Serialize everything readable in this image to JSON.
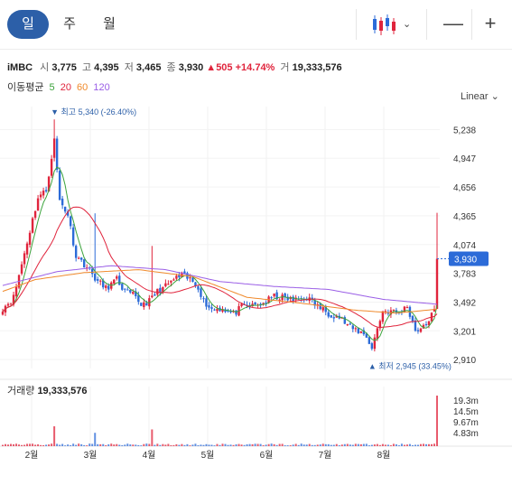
{
  "tabs": [
    {
      "label": "일",
      "active": true
    },
    {
      "label": "주",
      "active": false
    },
    {
      "label": "월",
      "active": false
    }
  ],
  "toolbar": {
    "chart_type_icon": "candlestick-icon",
    "zoom_out_icon": "minus-icon",
    "zoom_in_icon": "plus-icon",
    "zoom_out_label": "—",
    "zoom_in_label": "+"
  },
  "stock": {
    "name": "iMBC",
    "open_label": "시",
    "open": "3,775",
    "high_label": "고",
    "high": "4,395",
    "low_label": "저",
    "low": "3,465",
    "close_label": "종",
    "close": "3,930",
    "change": "505",
    "change_pct": "+14.74%",
    "volume_label": "거",
    "volume": "19,333,576"
  },
  "moving_average": {
    "label": "이동평균",
    "periods": [
      {
        "value": "5",
        "color": "#3ca33c"
      },
      {
        "value": "20",
        "color": "#e0243c"
      },
      {
        "value": "60",
        "color": "#f08a2c"
      },
      {
        "value": "120",
        "color": "#9a5ee6"
      }
    ]
  },
  "scale_label": "Linear",
  "price_tag": "3,930",
  "volume_panel": {
    "label": "거래량",
    "value": "19,333,576"
  },
  "colors": {
    "up": "#e0243c",
    "down": "#2c6bd8",
    "accent": "#2c5fa8",
    "ma5": "#3ca33c",
    "ma20": "#e0243c",
    "ma60": "#f08a2c",
    "ma120": "#9a5ee6"
  },
  "chart_data": {
    "type": "candlestick",
    "y_ticks": [
      5238,
      4947,
      4656,
      4365,
      4074,
      3783,
      3492,
      3201,
      2910
    ],
    "y_tick_labels": [
      "5,238",
      "4,947",
      "4,656",
      "4,365",
      "4,074",
      "3,783",
      "3,492",
      "3,201",
      "2,910"
    ],
    "ylim": [
      2820,
      5470
    ],
    "x_tick_labels": [
      "2월",
      "3월",
      "4월",
      "5월",
      "6월",
      "7월",
      "8월"
    ],
    "volume_ticks": [
      "19.3m",
      "14.5m",
      "9.67m",
      "4.83m"
    ],
    "volume_max": 19333576,
    "high_annotation": {
      "prefix": "최고",
      "value": 5340,
      "text": "5,340 (-26.40%)"
    },
    "low_annotation": {
      "prefix": "최저",
      "value": 2945,
      "text": "2,945 (33.45%)"
    },
    "last_close": 3930,
    "waypoints": [
      [
        0,
        3430
      ],
      [
        4,
        3540
      ],
      [
        9,
        4100
      ],
      [
        13,
        4550
      ],
      [
        16,
        4620
      ],
      [
        19,
        5130
      ],
      [
        21,
        4520
      ],
      [
        24,
        4380
      ],
      [
        27,
        3960
      ],
      [
        31,
        3850
      ],
      [
        35,
        3700
      ],
      [
        38,
        3630
      ],
      [
        42,
        3720
      ],
      [
        45,
        3600
      ],
      [
        48,
        3560
      ],
      [
        51,
        3470
      ],
      [
        54,
        3500
      ],
      [
        57,
        3600
      ],
      [
        60,
        3650
      ],
      [
        63,
        3720
      ],
      [
        66,
        3760
      ],
      [
        69,
        3720
      ],
      [
        72,
        3650
      ],
      [
        74,
        3500
      ],
      [
        77,
        3420
      ],
      [
        81,
        3430
      ],
      [
        85,
        3370
      ],
      [
        88,
        3440
      ],
      [
        92,
        3450
      ],
      [
        96,
        3480
      ],
      [
        100,
        3550
      ],
      [
        104,
        3530
      ],
      [
        108,
        3510
      ],
      [
        112,
        3540
      ],
      [
        116,
        3450
      ],
      [
        120,
        3380
      ],
      [
        124,
        3340
      ],
      [
        128,
        3230
      ],
      [
        131,
        3200
      ],
      [
        134,
        3150
      ],
      [
        136,
        3020
      ],
      [
        138,
        3230
      ],
      [
        140,
        3400
      ],
      [
        143,
        3400
      ],
      [
        146,
        3380
      ],
      [
        149,
        3450
      ],
      [
        152,
        3210
      ],
      [
        155,
        3230
      ],
      [
        157,
        3320
      ],
      [
        159,
        3400
      ],
      [
        160,
        3930
      ]
    ],
    "spikes": [
      {
        "i": 19,
        "high": 5340
      },
      {
        "i": 34,
        "high": 4390
      },
      {
        "i": 55,
        "high": 4060
      },
      {
        "i": 160,
        "high": 4395
      }
    ],
    "volume_spikes": [
      {
        "i": 19,
        "v": 7600000
      },
      {
        "i": 34,
        "v": 5100000
      },
      {
        "i": 55,
        "v": 6400000
      },
      {
        "i": 160,
        "v": 19333576
      }
    ],
    "ma120_points": [
      [
        0,
        3660
      ],
      [
        20,
        3800
      ],
      [
        40,
        3860
      ],
      [
        60,
        3820
      ],
      [
        80,
        3700
      ],
      [
        100,
        3650
      ],
      [
        120,
        3620
      ],
      [
        140,
        3520
      ],
      [
        160,
        3470
      ]
    ],
    "ma60_points": [
      [
        0,
        3600
      ],
      [
        12,
        3720
      ],
      [
        30,
        3790
      ],
      [
        50,
        3820
      ],
      [
        70,
        3750
      ],
      [
        90,
        3540
      ],
      [
        110,
        3480
      ],
      [
        130,
        3410
      ],
      [
        145,
        3380
      ],
      [
        160,
        3420
      ]
    ]
  }
}
